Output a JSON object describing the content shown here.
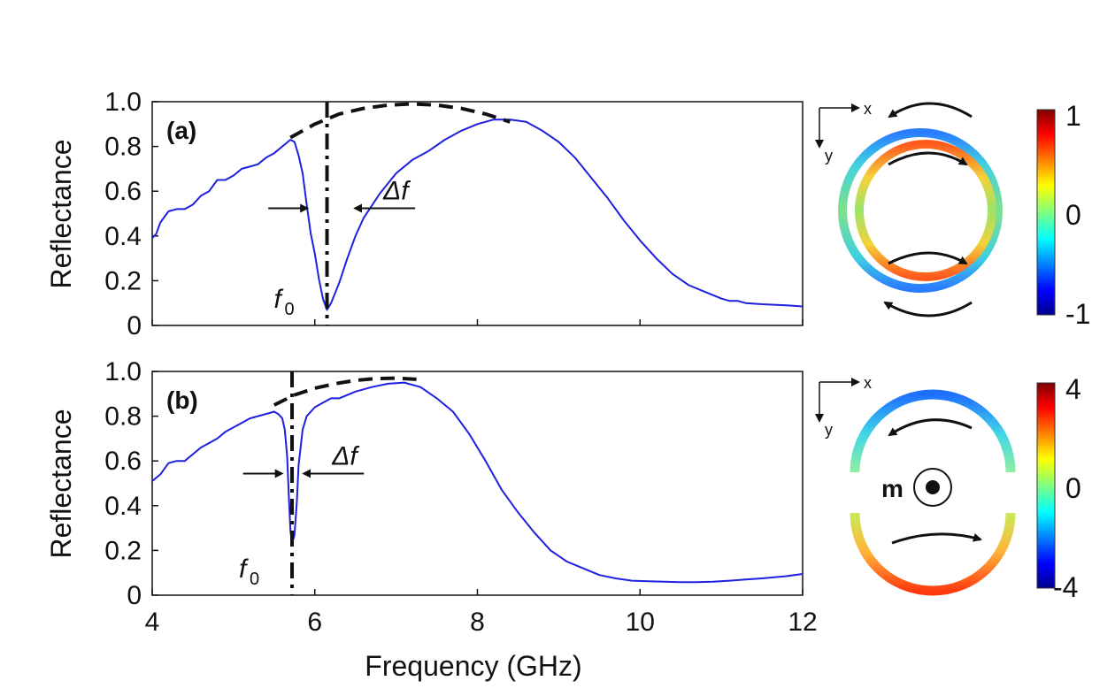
{
  "chart_data": [
    {
      "panel": "(a)",
      "type": "line",
      "xlabel": "Frequency (GHz)",
      "ylabel": "Reflectance",
      "xlim": [
        4,
        12
      ],
      "ylim": [
        0,
        1.0
      ],
      "xticks": [
        "4",
        "6",
        "8",
        "10",
        "12"
      ],
      "yticks": [
        "0",
        "0.2",
        "0.4",
        "0.6",
        "0.8",
        "1.0"
      ],
      "series": [
        {
          "name": "reflectance",
          "color": "#1f1fe0",
          "x": [
            4.0,
            4.05,
            4.1,
            4.2,
            4.3,
            4.4,
            4.5,
            4.6,
            4.7,
            4.8,
            4.9,
            5.0,
            5.1,
            5.2,
            5.3,
            5.4,
            5.5,
            5.6,
            5.7,
            5.75,
            5.8,
            5.85,
            5.9,
            5.95,
            6.0,
            6.05,
            6.1,
            6.15,
            6.2,
            6.3,
            6.4,
            6.5,
            6.6,
            6.8,
            7.0,
            7.2,
            7.4,
            7.6,
            7.8,
            8.0,
            8.2,
            8.4,
            8.6,
            8.8,
            9.0,
            9.2,
            9.4,
            9.6,
            9.8,
            10.0,
            10.2,
            10.4,
            10.6,
            10.8,
            11.0,
            11.1,
            11.2,
            11.3,
            11.5,
            11.8,
            12.0
          ],
          "y": [
            0.39,
            0.41,
            0.46,
            0.51,
            0.52,
            0.52,
            0.54,
            0.58,
            0.6,
            0.65,
            0.65,
            0.67,
            0.7,
            0.71,
            0.72,
            0.75,
            0.77,
            0.8,
            0.83,
            0.82,
            0.76,
            0.68,
            0.54,
            0.41,
            0.32,
            0.21,
            0.12,
            0.07,
            0.1,
            0.19,
            0.3,
            0.4,
            0.48,
            0.59,
            0.68,
            0.74,
            0.78,
            0.83,
            0.87,
            0.9,
            0.92,
            0.92,
            0.91,
            0.87,
            0.82,
            0.75,
            0.66,
            0.57,
            0.47,
            0.38,
            0.3,
            0.23,
            0.18,
            0.15,
            0.12,
            0.11,
            0.11,
            0.1,
            0.095,
            0.09,
            0.085
          ]
        },
        {
          "name": "envelope",
          "style": "dashed",
          "color": "#111111",
          "x": [
            5.7,
            6.0,
            6.3,
            6.6,
            6.9,
            7.2,
            7.5,
            7.8,
            8.1,
            8.4
          ],
          "y": [
            0.84,
            0.9,
            0.945,
            0.97,
            0.985,
            0.99,
            0.985,
            0.97,
            0.945,
            0.91
          ]
        }
      ],
      "markers": {
        "f0_line_x": 6.15,
        "f0_label": "f",
        "f0_sub": "0",
        "delta_label": "Δf",
        "width_left_x": 5.95,
        "width_right_x": 6.45,
        "width_y": 0.5
      }
    },
    {
      "panel": "(b)",
      "type": "line",
      "xlabel": "Frequency (GHz)",
      "ylabel": "Reflectance",
      "xlim": [
        4,
        12
      ],
      "ylim": [
        0,
        1.0
      ],
      "xticks": [
        "4",
        "6",
        "8",
        "10",
        "12"
      ],
      "yticks": [
        "0",
        "0.2",
        "0.4",
        "0.6",
        "0.8",
        "1.0"
      ],
      "series": [
        {
          "name": "reflectance",
          "color": "#1f1fe0",
          "x": [
            4.0,
            4.1,
            4.2,
            4.3,
            4.4,
            4.5,
            4.6,
            4.7,
            4.8,
            4.9,
            5.0,
            5.1,
            5.2,
            5.3,
            5.4,
            5.5,
            5.55,
            5.6,
            5.63,
            5.66,
            5.68,
            5.7,
            5.72,
            5.75,
            5.78,
            5.8,
            5.85,
            5.9,
            6.0,
            6.1,
            6.2,
            6.3,
            6.5,
            6.7,
            6.9,
            7.1,
            7.3,
            7.5,
            7.7,
            7.9,
            8.1,
            8.3,
            8.5,
            8.7,
            8.9,
            9.1,
            9.3,
            9.5,
            9.7,
            9.9,
            10.1,
            10.3,
            10.5,
            10.7,
            10.9,
            11.1,
            11.3,
            11.5,
            11.8,
            12.0
          ],
          "y": [
            0.51,
            0.54,
            0.59,
            0.6,
            0.6,
            0.63,
            0.66,
            0.68,
            0.7,
            0.73,
            0.75,
            0.77,
            0.79,
            0.8,
            0.81,
            0.82,
            0.81,
            0.79,
            0.74,
            0.62,
            0.45,
            0.29,
            0.23,
            0.27,
            0.42,
            0.58,
            0.74,
            0.8,
            0.84,
            0.86,
            0.88,
            0.88,
            0.91,
            0.93,
            0.945,
            0.95,
            0.93,
            0.88,
            0.82,
            0.72,
            0.6,
            0.47,
            0.37,
            0.28,
            0.2,
            0.15,
            0.12,
            0.09,
            0.075,
            0.065,
            0.062,
            0.06,
            0.058,
            0.058,
            0.06,
            0.065,
            0.07,
            0.075,
            0.085,
            0.095
          ]
        },
        {
          "name": "envelope",
          "style": "dashed",
          "color": "#111111",
          "x": [
            5.5,
            5.75,
            6.0,
            6.25,
            6.5,
            6.75,
            7.0,
            7.25
          ],
          "y": [
            0.85,
            0.895,
            0.925,
            0.945,
            0.96,
            0.968,
            0.97,
            0.965
          ]
        }
      ],
      "markers": {
        "f0_line_x": 5.72,
        "f0_label": "f",
        "f0_sub": "0",
        "delta_label": "Δf",
        "width_left_x": 5.64,
        "width_right_x": 5.82,
        "width_y": 0.52
      }
    }
  ],
  "insets": [
    {
      "axis_x": "x",
      "axis_y": "y",
      "colorbar_max": "1",
      "colorbar_mid": "0",
      "colorbar_min": "-1"
    },
    {
      "axis_x": "x",
      "axis_y": "y",
      "colorbar_max": "4",
      "colorbar_mid": "0",
      "colorbar_min": "-4",
      "moment_label": "m"
    }
  ],
  "colors": {
    "curve": "#1f1fe0",
    "axis": "#111111"
  }
}
